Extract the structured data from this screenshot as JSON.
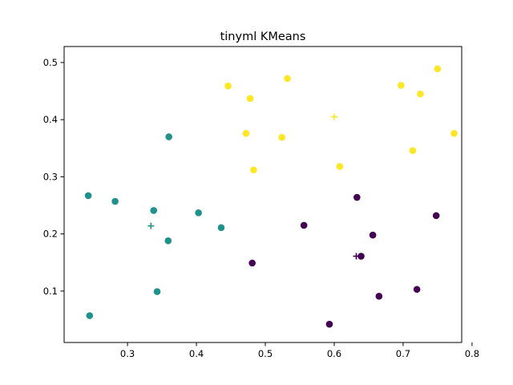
{
  "chart_data": {
    "type": "scatter",
    "title": "tinyml KMeans",
    "xlabel": "",
    "ylabel": "",
    "xlim": [
      0.208,
      0.785
    ],
    "ylim": [
      0.01,
      0.528
    ],
    "xticks": [
      0.3,
      0.4,
      0.5,
      0.6,
      0.7,
      0.8
    ],
    "yticks": [
      0.1,
      0.2,
      0.3,
      0.4,
      0.5
    ],
    "grid": false,
    "colors": {
      "cluster_0": "#440154",
      "cluster_1": "#21918c",
      "cluster_2": "#fde725"
    },
    "series": [
      {
        "cluster": 0,
        "color": "#440154",
        "points": [
          [
            0.633,
            0.264
          ],
          [
            0.556,
            0.215
          ],
          [
            0.656,
            0.198
          ],
          [
            0.748,
            0.232
          ],
          [
            0.481,
            0.149
          ],
          [
            0.639,
            0.161
          ],
          [
            0.72,
            0.103
          ],
          [
            0.665,
            0.091
          ],
          [
            0.593,
            0.042
          ]
        ],
        "centroid": [
          0.632,
          0.161
        ]
      },
      {
        "cluster": 1,
        "color": "#21918c",
        "points": [
          [
            0.36,
            0.37
          ],
          [
            0.243,
            0.267
          ],
          [
            0.282,
            0.257
          ],
          [
            0.338,
            0.241
          ],
          [
            0.403,
            0.237
          ],
          [
            0.436,
            0.211
          ],
          [
            0.359,
            0.188
          ],
          [
            0.343,
            0.099
          ],
          [
            0.245,
            0.057
          ]
        ],
        "centroid": [
          0.334,
          0.214
        ]
      },
      {
        "cluster": 2,
        "color": "#fde725",
        "points": [
          [
            0.75,
            0.489
          ],
          [
            0.446,
            0.459
          ],
          [
            0.532,
            0.472
          ],
          [
            0.697,
            0.46
          ],
          [
            0.725,
            0.445
          ],
          [
            0.478,
            0.437
          ],
          [
            0.472,
            0.376
          ],
          [
            0.524,
            0.369
          ],
          [
            0.774,
            0.376
          ],
          [
            0.714,
            0.346
          ],
          [
            0.483,
            0.312
          ],
          [
            0.608,
            0.318
          ]
        ],
        "centroid": [
          0.6,
          0.405
        ]
      }
    ]
  }
}
